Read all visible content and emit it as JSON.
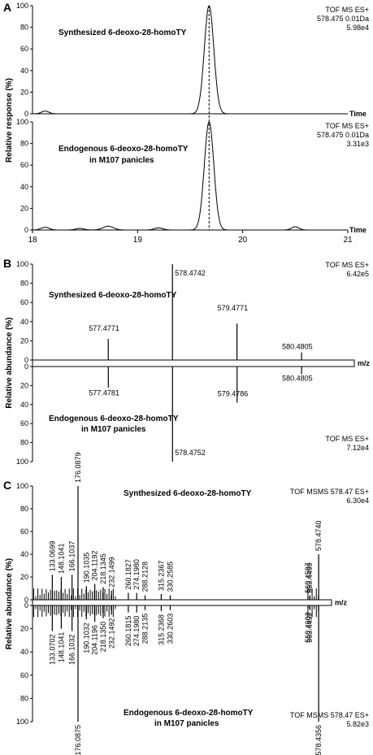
{
  "chart_data": [
    {
      "panel": "A",
      "type": "line",
      "ylabel": "Relative response (%)",
      "xlabel": "Time",
      "xlim": [
        18,
        21
      ],
      "xticks": [
        18,
        19,
        20,
        21
      ],
      "ylim": [
        0,
        100
      ],
      "yticks": [
        0,
        20,
        40,
        60,
        80,
        100
      ],
      "reference_line_x": 19.68,
      "traces": [
        {
          "name": "Synthesized 6-deoxo-28-homoTY",
          "info": [
            "TOF MS ES+",
            "578.475 0.01Da",
            "5.98e4"
          ],
          "peaks": [
            [
              18.12,
              2.5,
              0.035
            ],
            [
              19.68,
              100,
              0.045
            ]
          ]
        },
        {
          "name": "Endogenous 6-deoxo-28-homoTY",
          "name2": "in M107 panicles",
          "info": [
            "TOF MS ES+",
            "578.475 0.01Da",
            "3.31e3"
          ],
          "peaks": [
            [
              18.12,
              2.5,
              0.04
            ],
            [
              18.45,
              1.5,
              0.04
            ],
            [
              18.72,
              3.5,
              0.05
            ],
            [
              19.2,
              2.0,
              0.04
            ],
            [
              19.68,
              100,
              0.045
            ],
            [
              20.5,
              3.0,
              0.035
            ]
          ]
        }
      ]
    },
    {
      "panel": "B",
      "type": "bar",
      "ylabel": "Relative abundance (%)",
      "xlabel": "m/z",
      "ylim": [
        0,
        100
      ],
      "yticks": [
        0,
        20,
        40,
        60,
        80,
        100
      ],
      "xlim": [
        576.3,
        581.3
      ],
      "top": {
        "name": "Synthesized 6-deoxo-28-homoTY",
        "info": [
          "TOF MS ES+",
          "6.42e5"
        ],
        "peaks": [
          {
            "mz": 577.4771,
            "y": 22,
            "label": "577.4771"
          },
          {
            "mz": 578.4742,
            "y": 100,
            "label": "578.4742"
          },
          {
            "mz": 579.4771,
            "y": 38,
            "label": "579.4771"
          },
          {
            "mz": 580.4805,
            "y": 8,
            "label": "580.4805"
          }
        ]
      },
      "bottom": {
        "name": "Endogenous 6-deoxo-28-homoTY",
        "name2": "in M107 panicles",
        "info": [
          "TOF MS ES+",
          "7.12e4"
        ],
        "peaks": [
          {
            "mz": 577.4781,
            "y": 22,
            "label": "577.4781"
          },
          {
            "mz": 578.4752,
            "y": 100,
            "label": "578.4752"
          },
          {
            "mz": 579.4786,
            "y": 38,
            "label": "579.4786"
          },
          {
            "mz": 580.4805,
            "y": 8,
            "label": "580.4805"
          }
        ]
      }
    },
    {
      "panel": "C",
      "type": "bar",
      "ylabel": "Relative abundance (%)",
      "xlabel": "m/z",
      "ylim": [
        0,
        100
      ],
      "yticks": [
        0,
        20,
        40,
        60,
        80,
        100
      ],
      "xlim": [
        100,
        600
      ],
      "top": {
        "name": "Synthesized 6-deoxo-28-homoTY",
        "info": [
          "TOF MSMS 578.47 ES+",
          "6.30e4"
        ],
        "peaks": [
          {
            "mz": 133.0699,
            "y": 22,
            "label": "133.0699"
          },
          {
            "mz": 148.1041,
            "y": 20,
            "label": "148.1041"
          },
          {
            "mz": 166.1037,
            "y": 22,
            "label": "166.1037"
          },
          {
            "mz": 176.0879,
            "y": 100,
            "label": "176.0879"
          },
          {
            "mz": 190.1035,
            "y": 12,
            "label": "190.1035"
          },
          {
            "mz": 204.1192,
            "y": 14,
            "label": "204.1192"
          },
          {
            "mz": 218.1345,
            "y": 11,
            "label": "218.1345"
          },
          {
            "mz": 232.1499,
            "y": 8,
            "label": "232.1499"
          },
          {
            "mz": 260.1827,
            "y": 6,
            "label": "260.1827"
          },
          {
            "mz": 274.198,
            "y": 6,
            "label": "274.1980"
          },
          {
            "mz": 288.2128,
            "y": 4,
            "label": "288.2128"
          },
          {
            "mz": 315.2367,
            "y": 5,
            "label": "315.2367"
          },
          {
            "mz": 330.2585,
            "y": 4,
            "label": "330.2585"
          },
          {
            "mz": 560.4597,
            "y": 3,
            "label": "560.4597"
          },
          {
            "mz": 563.4499,
            "y": 3,
            "label": "563.4499"
          },
          {
            "mz": 578.474,
            "y": 40,
            "label": "578.4740"
          }
        ]
      },
      "bottom": {
        "name": "Endogenous 6-deoxo-28-homoTY",
        "name2": "in M107 panicles",
        "info": [
          "TOF MSMS 578.47 ES+",
          "5.82e3"
        ],
        "peaks": [
          {
            "mz": 133.0702,
            "y": 22,
            "label": "133.0702"
          },
          {
            "mz": 148.1041,
            "y": 20,
            "label": "148.1041"
          },
          {
            "mz": 166.1032,
            "y": 22,
            "label": "166.1032"
          },
          {
            "mz": 176.0875,
            "y": 100,
            "label": "176.0875"
          },
          {
            "mz": 190.1032,
            "y": 12,
            "label": "190.1032"
          },
          {
            "mz": 204.1196,
            "y": 14,
            "label": "204.1196"
          },
          {
            "mz": 218.135,
            "y": 11,
            "label": "218.1350"
          },
          {
            "mz": 232.1492,
            "y": 8,
            "label": "232.1492"
          },
          {
            "mz": 260.1815,
            "y": 6,
            "label": "260.1815"
          },
          {
            "mz": 274.198,
            "y": 6,
            "label": "274.1980"
          },
          {
            "mz": 288.2135,
            "y": 4,
            "label": "288.2135"
          },
          {
            "mz": 315.2368,
            "y": 5,
            "label": "315.2368"
          },
          {
            "mz": 330.2603,
            "y": 4,
            "label": "330.2603"
          },
          {
            "mz": 560.4602,
            "y": 3,
            "label": "560.4602"
          },
          {
            "mz": 563.4492,
            "y": 3,
            "label": "563.4492"
          },
          {
            "mz": 578.4356,
            "y": 100,
            "label": "578.4356"
          }
        ]
      }
    }
  ]
}
